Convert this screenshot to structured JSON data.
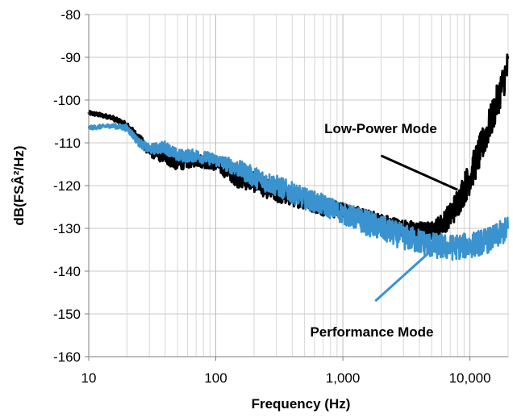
{
  "chart_data": {
    "type": "line",
    "title": "",
    "xlabel": "Frequency (Hz)",
    "ylabel": "dB(FSÂ²/Hz)",
    "x_scale": "log",
    "xlim": [
      10,
      20000
    ],
    "ylim": [
      -160,
      -80
    ],
    "grid": true,
    "x_ticks": [
      10,
      100,
      1000,
      10000
    ],
    "x_tick_labels": [
      "10",
      "100",
      "1,000",
      "10,000"
    ],
    "y_ticks": [
      -80,
      -90,
      -100,
      -110,
      -120,
      -130,
      -140,
      -150,
      -160
    ],
    "y_tick_labels": [
      "-80",
      "-90",
      "-100",
      "-110",
      "-120",
      "-130",
      "-140",
      "-150",
      "-160"
    ],
    "colors": {
      "low_power": "#000000",
      "performance": "#3a93cf"
    },
    "annotations": [
      {
        "text": "Low-Power Mode",
        "series": "low_power",
        "arrow_from": [
          2000,
          -113
        ],
        "arrow_to": [
          8000,
          -121
        ]
      },
      {
        "text": "Performance Mode",
        "series": "performance",
        "arrow_from": [
          1800,
          -147
        ],
        "arrow_to": [
          5500,
          -134
        ]
      }
    ],
    "series": [
      {
        "key": "low_power",
        "x": [
          10,
          15,
          20,
          25,
          30,
          40,
          50,
          70,
          100,
          150,
          200,
          300,
          500,
          700,
          1000,
          1500,
          2000,
          3000,
          4000,
          5000,
          6000,
          7000,
          8000,
          10000,
          12000,
          15000,
          20000
        ],
        "y": [
          -103,
          -104,
          -106,
          -109,
          -112,
          -113,
          -115,
          -114,
          -115,
          -118,
          -119,
          -122,
          -123.5,
          -125,
          -126,
          -127.5,
          -128.5,
          -130,
          -130.5,
          -130.5,
          -129,
          -127,
          -124,
          -118,
          -112,
          -104,
          -92
        ],
        "spread": [
          0.5,
          0.5,
          0.8,
          1.0,
          1.2,
          2.0,
          1.5,
          1.5,
          1.5,
          2.5,
          2.5,
          2.0,
          2.0,
          2.0,
          2.0,
          2.0,
          2.0,
          2.0,
          2.0,
          2.0,
          2.5,
          3.0,
          3.5,
          4.0,
          4.0,
          4.0,
          4.0
        ]
      },
      {
        "key": "performance",
        "x": [
          10,
          15,
          20,
          25,
          30,
          40,
          50,
          70,
          100,
          150,
          200,
          300,
          500,
          700,
          1000,
          1500,
          2000,
          3000,
          4000,
          5000,
          7000,
          10000,
          15000,
          20000
        ],
        "y": [
          -106.5,
          -106,
          -106.5,
          -110,
          -111.5,
          -111,
          -113,
          -113,
          -114,
          -116,
          -118,
          -120,
          -123,
          -124.5,
          -126.5,
          -128.5,
          -130,
          -132,
          -133,
          -134,
          -134.5,
          -134,
          -132.5,
          -130
        ],
        "spread": [
          0.5,
          0.5,
          0.8,
          1.0,
          1.2,
          1.5,
          1.5,
          1.5,
          1.5,
          2.0,
          2.5,
          2.5,
          2.5,
          2.5,
          2.5,
          3.0,
          3.0,
          3.0,
          3.0,
          3.0,
          3.0,
          3.0,
          3.0,
          3.0
        ]
      }
    ]
  }
}
